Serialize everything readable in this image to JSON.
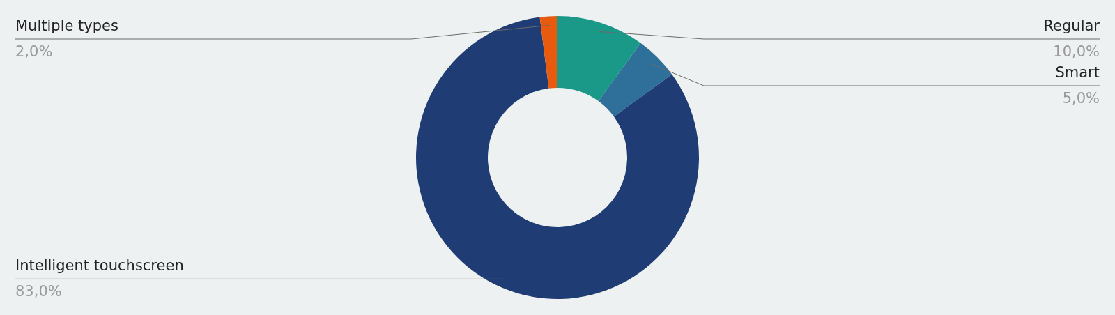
{
  "chart_data": {
    "type": "donut",
    "categories": [
      "Regular",
      "Smart",
      "Intelligent touchscreen",
      "Multiple types"
    ],
    "values": [
      10,
      5,
      83,
      2
    ],
    "colors": [
      "#1a9988",
      "#2e7099",
      "#1f3c74",
      "#e85a0e"
    ],
    "value_labels": [
      "10,0%",
      "5,0%",
      "83,0%",
      "2,0%"
    ]
  }
}
